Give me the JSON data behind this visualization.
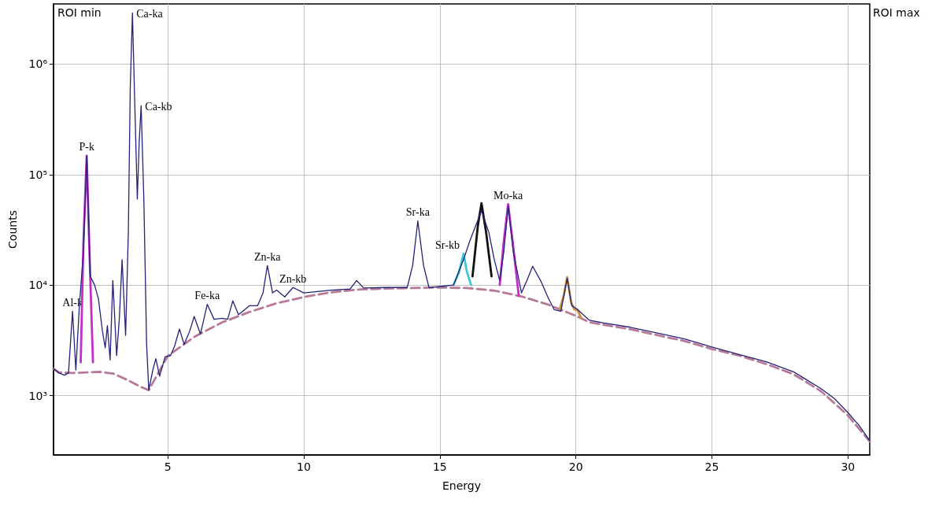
{
  "chart_data": {
    "type": "line",
    "xlabel": "Energy",
    "ylabel": "Counts",
    "log": "y",
    "grid": true,
    "marker": "none",
    "xlim": [
      0.8,
      30.8
    ],
    "xticks": [
      5,
      10,
      15,
      20,
      25,
      30
    ],
    "ylim": [
      290,
      3500000
    ],
    "yticks": [
      {
        "value": 1000,
        "label": "10³"
      },
      {
        "value": 10000,
        "label": "10⁴"
      },
      {
        "value": 100000,
        "label": "10⁵"
      },
      {
        "value": 1000000,
        "label": "10⁶"
      }
    ],
    "annotations": [
      "ROI min",
      "ROI max",
      {
        "text": "Al-k",
        "x": 1.5,
        "y": 5800
      },
      {
        "text": "P-k",
        "x": 2.02,
        "y": 148000
      },
      {
        "text": "Ca-ka",
        "x": 3.7,
        "y": 2900000
      },
      {
        "text": "Ca-kb",
        "x": 4.02,
        "y": 420000
      },
      {
        "text": "Fe-ka",
        "x": 6.45,
        "y": 6700
      },
      {
        "text": "Zn-ka",
        "x": 8.66,
        "y": 15000
      },
      {
        "text": "Zn-kb",
        "x": 9.6,
        "y": 9500
      },
      {
        "text": "Sr-ka",
        "x": 14.19,
        "y": 38000
      },
      {
        "text": "Sr-kb",
        "x": 15.87,
        "y": 19300
      },
      {
        "text": "Mo-ka",
        "x": 17.51,
        "y": 54000
      }
    ],
    "series": [
      {
        "color": "#b87898",
        "line_style": "dashed",
        "x": [
          0.8,
          1.0,
          1.5,
          2,
          2.5,
          3,
          3.5,
          4,
          4.3,
          5,
          6,
          7,
          8,
          9,
          10,
          11,
          12,
          13,
          14,
          15,
          16,
          17,
          18,
          19,
          20,
          20.5,
          22,
          24,
          25,
          26,
          27,
          28,
          29,
          30,
          30.8
        ],
        "values": [
          1750,
          1620,
          1600,
          1620,
          1640,
          1580,
          1390,
          1200,
          1120,
          2280,
          3430,
          4600,
          5700,
          6850,
          7800,
          8600,
          9100,
          9300,
          9400,
          9500,
          9400,
          8900,
          7900,
          6630,
          5260,
          4600,
          3980,
          3110,
          2640,
          2300,
          1930,
          1560,
          1100,
          660,
          385
        ]
      },
      {
        "color": "#c030c8",
        "line_style": "solid",
        "x": [
          1.8,
          1.9,
          2.02,
          2.12,
          2.25,
          2.3,
          17.2,
          17.35,
          17.51,
          17.7,
          17.9
        ],
        "values": [
          2000,
          25000,
          148000,
          20000,
          2000,
          null,
          10000,
          25000,
          54000,
          22000,
          8000
        ]
      },
      {
        "color": "#40c8d8",
        "line_style": "solid",
        "x": [
          15.5,
          15.7,
          15.87,
          16.0,
          16.15
        ],
        "values": [
          10000,
          13000,
          19300,
          13000,
          10000
        ]
      },
      {
        "color": "#c89040",
        "line_style": "solid",
        "x": [
          19.4,
          19.55,
          19.68,
          19.82,
          19.95,
          20.05,
          20.2
        ],
        "values": [
          6000,
          8000,
          11800,
          7000,
          6000,
          6000,
          5000
        ]
      },
      {
        "color": "#111111",
        "line_style": "solid",
        "x": [
          16.2,
          16.4,
          16.53,
          16.7,
          16.9
        ],
        "values": [
          12000,
          35000,
          55000,
          30000,
          12000
        ]
      },
      {
        "color": "#23237a",
        "line_style": "solid",
        "x": [
          0.8,
          1.0,
          1.2,
          1.35,
          1.5,
          1.62,
          1.75,
          1.9,
          2.02,
          2.15,
          2.31,
          2.45,
          2.6,
          2.7,
          2.78,
          2.88,
          2.98,
          3.12,
          3.22,
          3.32,
          3.45,
          3.55,
          3.62,
          3.7,
          3.78,
          3.88,
          3.95,
          4.02,
          4.12,
          4.22,
          4.3,
          4.45,
          4.56,
          4.7,
          4.9,
          5.1,
          5.25,
          5.43,
          5.6,
          5.8,
          5.97,
          6.2,
          6.45,
          6.7,
          7.0,
          7.2,
          7.39,
          7.6,
          8.0,
          8.3,
          8.5,
          8.66,
          8.85,
          9.0,
          9.3,
          9.6,
          10.0,
          11.0,
          11.7,
          11.94,
          12.2,
          13.0,
          13.8,
          14.0,
          14.19,
          14.4,
          14.6,
          15.0,
          15.5,
          15.87,
          16.1,
          16.53,
          16.8,
          17.0,
          17.2,
          17.35,
          17.51,
          17.7,
          18.0,
          18.2,
          18.41,
          18.7,
          19.0,
          19.2,
          19.45,
          19.68,
          19.85,
          20.03,
          20.5,
          21,
          22,
          23,
          24,
          25,
          26,
          27,
          28,
          29,
          29.5,
          30,
          30.4,
          30.8
        ],
        "values": [
          1750,
          1600,
          1530,
          1600,
          5800,
          1700,
          6500,
          20000,
          148000,
          12000,
          10000,
          7500,
          3800,
          2700,
          4300,
          2100,
          11000,
          2300,
          5000,
          17000,
          3500,
          30000,
          600000,
          2900000,
          500000,
          60000,
          200000,
          420000,
          60000,
          3000,
          1120,
          1700,
          2160,
          1500,
          2240,
          2300,
          2800,
          4000,
          2900,
          3800,
          5200,
          3600,
          6700,
          4900,
          5000,
          4900,
          7200,
          5400,
          6500,
          6500,
          8500,
          15000,
          8500,
          9000,
          7800,
          9500,
          8500,
          9000,
          9200,
          11000,
          9400,
          9500,
          9500,
          15000,
          38000,
          15000,
          9500,
          9700,
          10000,
          17000,
          25000,
          47000,
          30000,
          17000,
          11000,
          20000,
          52000,
          20000,
          8500,
          11000,
          14800,
          11000,
          7500,
          6000,
          5800,
          11500,
          6500,
          6100,
          4800,
          4550,
          4150,
          3680,
          3250,
          2750,
          2350,
          2020,
          1640,
          1160,
          940,
          700,
          540,
          390
        ]
      }
    ]
  }
}
